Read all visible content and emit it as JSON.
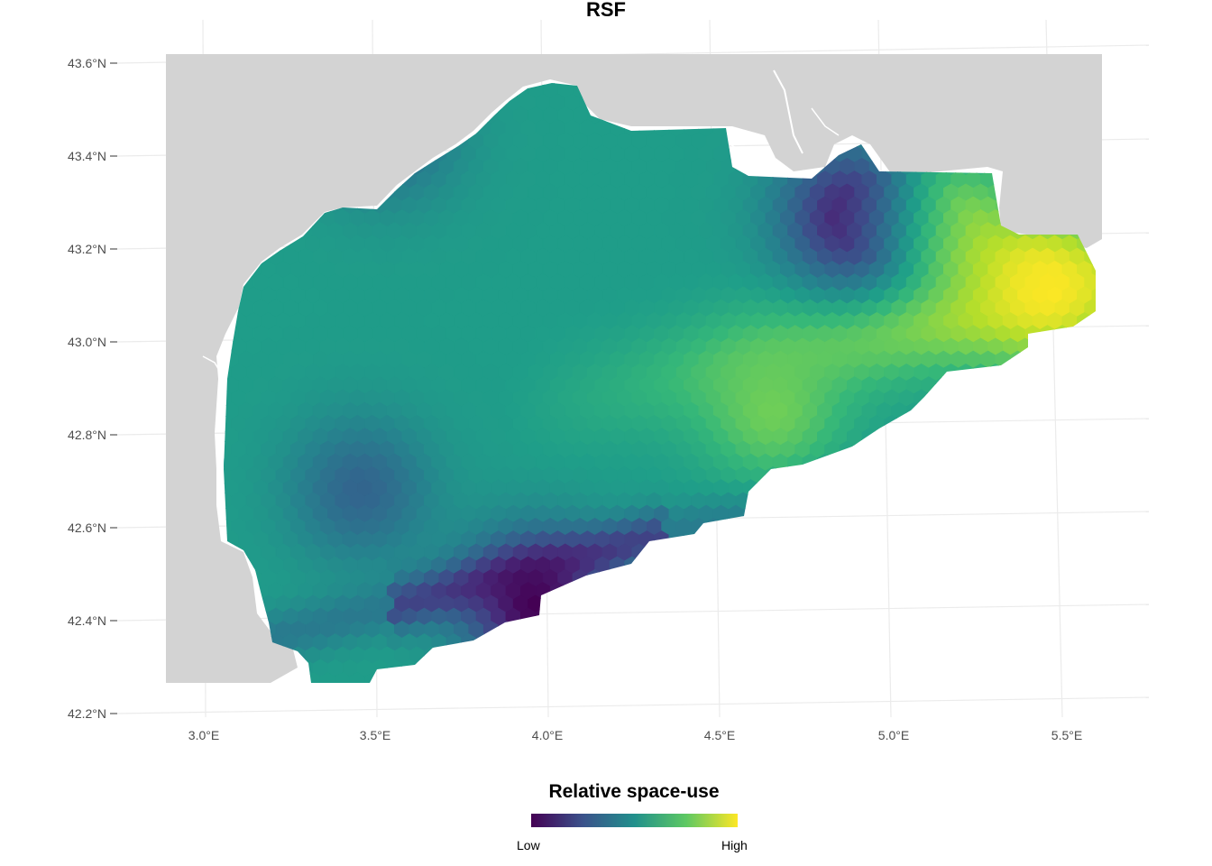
{
  "title": "RSF",
  "map": {
    "x_ticks": [
      "3.0°E",
      "3.5°E",
      "4.0°E",
      "4.5°E",
      "5.0°E",
      "5.5°E"
    ],
    "y_ticks": [
      "43.6°N",
      "43.4°N",
      "43.2°N",
      "43.0°N",
      "42.8°N",
      "42.6°N",
      "42.4°N",
      "42.2°N"
    ],
    "land_color": "#d3d3d3",
    "grid_color": "#ebebeb",
    "colormap": "viridis",
    "surface_hotspots": [
      {
        "lon": 5.45,
        "lat": 43.12,
        "value": 1.0
      },
      {
        "lon": 5.15,
        "lat": 43.25,
        "value": 0.85
      },
      {
        "lon": 4.65,
        "lat": 42.85,
        "value": 0.78
      },
      {
        "lon": 4.9,
        "lat": 43.27,
        "value": 0.05
      },
      {
        "lon": 3.95,
        "lat": 42.43,
        "value": 0.0
      },
      {
        "lon": 3.45,
        "lat": 42.68,
        "value": 0.32
      },
      {
        "lon": 3.55,
        "lat": 43.45,
        "value": 0.35
      }
    ]
  },
  "legend": {
    "title": "Relative space-use",
    "low_label": "Low",
    "high_label": "High",
    "gradient": [
      "#440154",
      "#3b528b",
      "#21908c",
      "#5dc863",
      "#fde725"
    ]
  }
}
